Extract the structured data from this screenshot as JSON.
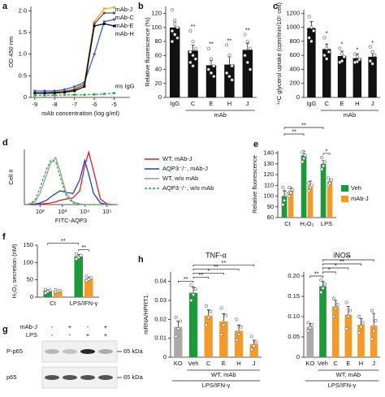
{
  "chart_data": [
    {
      "panel": "a",
      "type": "line",
      "xlabel": "mAb concentration (log g/ml)",
      "ylabel": "OD 450 nm",
      "x": [
        -9,
        -8.5,
        -8,
        -7.5,
        -7,
        -6.5,
        -6,
        -5.5,
        -5
      ],
      "xlim": [
        -9.2,
        -4.2
      ],
      "xticks": [
        -9,
        -8,
        -7,
        -6,
        -5
      ],
      "ylim": [
        0,
        2.1
      ],
      "yticks": [
        0,
        0.5,
        {
          "value": 1,
          "label": "1.0"
        },
        1.5,
        {
          "value": 2,
          "label": "2.0"
        }
      ],
      "markers": true,
      "legend": "line-end",
      "series": [
        {
          "name": "mAb-J",
          "color": "#f5a623",
          "values": [
            0.12,
            0.12,
            0.13,
            0.15,
            0.2,
            0.35,
            1.75,
            2.05,
            2.08
          ]
        },
        {
          "name": "mAb-C",
          "color": "#555555",
          "values": [
            0.1,
            0.1,
            0.12,
            0.13,
            0.18,
            0.3,
            1.7,
            1.95,
            1.95
          ]
        },
        {
          "name": "mAb-E",
          "color": "#3a5fcd",
          "values": [
            0.15,
            0.15,
            0.15,
            0.18,
            0.25,
            0.35,
            1.0,
            1.75,
            1.8
          ]
        },
        {
          "name": "mAb-H",
          "color": "#000000",
          "values": [
            0.1,
            0.1,
            0.1,
            0.12,
            0.15,
            0.25,
            1.65,
            1.7,
            1.65
          ]
        },
        {
          "name": "ms IgG",
          "color": "#2eaa4a",
          "dash": true,
          "values": [
            0.05,
            0.05,
            0.05,
            0.06,
            0.06,
            0.06,
            0.07,
            0.08,
            0.1
          ]
        }
      ]
    },
    {
      "panel": "b",
      "type": "bar",
      "ylabel": "Relative fluorescence (%)",
      "color": "#111111",
      "categories": [
        "IgG",
        "C",
        "E",
        "H",
        "J"
      ],
      "values": [
        100,
        67,
        46,
        47,
        68
      ],
      "errors": [
        9,
        8,
        7,
        11,
        9
      ],
      "points": [
        [
          125,
          110,
          100,
          95,
          90,
          85,
          80,
          105
        ],
        [
          95,
          80,
          70,
          65,
          60,
          55,
          50,
          45
        ],
        [
          70,
          55,
          45,
          40,
          35,
          30
        ],
        [
          75,
          60,
          45,
          35,
          30,
          25
        ],
        [
          90,
          80,
          70,
          60,
          50,
          40
        ]
      ],
      "sig": [
        null,
        "**",
        "**",
        "**",
        "**"
      ],
      "group_labels": [
        "mAb"
      ],
      "ylim": [
        0,
        130
      ],
      "yticks": [
        0,
        20,
        40,
        60,
        80,
        100,
        120
      ]
    },
    {
      "panel": "c",
      "type": "bar",
      "ylabel": "¹⁴C glycerol uptake (cpm/min/10⁵ cell)",
      "color": "#111111",
      "categories": [
        "IgG",
        "C",
        "E",
        "H",
        "J"
      ],
      "values": [
        990,
        690,
        590,
        560,
        580
      ],
      "errors": [
        90,
        70,
        70,
        60,
        60
      ],
      "points": [
        [
          1150,
          1000,
          950,
          850,
          800
        ],
        [
          850,
          700,
          650,
          600,
          550
        ],
        [
          700,
          620,
          580,
          500,
          520
        ],
        [
          620,
          580,
          540,
          500,
          510
        ],
        [
          720,
          650,
          600,
          520,
          480
        ]
      ],
      "sig": [
        null,
        "*",
        "*",
        "*",
        "*"
      ],
      "group_labels": [
        "mAb"
      ],
      "ylim": [
        0,
        1250
      ],
      "yticks": [
        0,
        200,
        400,
        600,
        800,
        1000,
        1200
      ]
    },
    {
      "panel": "d",
      "type": "line",
      "xlabel": "FITC-AQP3",
      "ylabel": "Cell #",
      "xscale": "log",
      "legend": "right",
      "x": [
        30,
        60,
        100,
        200,
        300,
        500,
        800,
        1500,
        3000,
        6000,
        10000,
        15000,
        25000,
        50000,
        100000,
        200000
      ],
      "xlim": [
        20,
        300000
      ],
      "xticks": [
        {
          "value": 100,
          "label": "10²"
        },
        {
          "value": 1000,
          "label": "10³"
        },
        {
          "value": 10000,
          "label": "10⁴"
        },
        {
          "value": 100000,
          "label": "10⁵"
        }
      ],
      "ylim": [
        0,
        100
      ],
      "series": [
        {
          "name": "WT, mAb-J",
          "color": "#e02020",
          "values": [
            0,
            0,
            1,
            2,
            3,
            5,
            8,
            10,
            12,
            25,
            70,
            95,
            60,
            10,
            1,
            0
          ]
        },
        {
          "name": "AQP3⁻/⁻, mAb-J",
          "color": "#2040c0",
          "values": [
            0,
            1,
            3,
            8,
            14,
            20,
            25,
            22,
            20,
            45,
            80,
            55,
            20,
            3,
            0,
            0
          ]
        },
        {
          "name": "WT, w/o mAb",
          "color": "#999999",
          "values": [
            0,
            5,
            20,
            55,
            75,
            85,
            60,
            20,
            5,
            1,
            0,
            0,
            0,
            0,
            0,
            0
          ]
        },
        {
          "name": "AQP3⁻/⁻, w/o mAb",
          "color": "#2eaa4a",
          "dash": true,
          "values": [
            0,
            8,
            30,
            65,
            80,
            78,
            50,
            15,
            3,
            1,
            0,
            0,
            0,
            0,
            0,
            0
          ]
        }
      ]
    },
    {
      "panel": "e",
      "type": "bar",
      "ylabel": "Relative fluorescence",
      "legend": "right",
      "categories": [
        "Ct",
        "H₂O₂",
        "LPS"
      ],
      "ylim": [
        80,
        142
      ],
      "yticks": [
        80,
        90,
        100,
        110,
        120,
        130,
        140
      ],
      "series": [
        {
          "name": "Veh",
          "color": "#1a9a3a",
          "values": [
            100,
            138,
            130
          ],
          "errors": [
            5,
            4,
            3
          ],
          "points": [
            [
              92,
              96,
              103,
              108
            ],
            [
              132,
              135,
              138,
              141
            ],
            [
              125,
              128,
              132,
              136
            ]
          ]
        },
        {
          "name": "mAb-J",
          "color": "#f39a2b",
          "values": [
            105,
            110,
            114
          ],
          "errors": [
            3,
            4,
            2
          ],
          "points": [
            [
              100,
              103,
              106,
              108
            ],
            [
              105,
              108,
              110,
              112
            ],
            [
              110,
              112,
              115,
              117
            ]
          ]
        }
      ],
      "brackets": [
        "**",
        "**",
        "*"
      ]
    },
    {
      "panel": "f",
      "type": "bar",
      "ylabel": "H₂O₂ secretion (nM)",
      "categories": [
        "Ct",
        "LPS/IFN-γ"
      ],
      "ylim": [
        0,
        150
      ],
      "yticks": [
        0,
        50,
        100,
        150
      ],
      "series": [
        {
          "name": "Veh",
          "color": "#1a9a3a",
          "values": [
            18,
            118
          ],
          "errors": [
            3,
            5
          ],
          "points": [
            [
              12,
              16,
              20,
              22
            ],
            [
              110,
              115,
              120,
              125
            ]
          ]
        },
        {
          "name": "mAb-J",
          "color": "#f39a2b",
          "values": [
            18,
            53
          ],
          "errors": [
            2,
            4
          ],
          "points": [
            [
              15,
              17,
              19,
              21
            ],
            [
              48,
              52,
              56,
              60
            ]
          ]
        }
      ],
      "brackets": [
        "**",
        "**"
      ]
    },
    {
      "panel": "h",
      "type": "bar",
      "title": "TNF-α",
      "ylabel": "mRNA/HPRT1",
      "categories": [
        "KO",
        "Veh",
        "C",
        "E",
        "H",
        "J"
      ],
      "values": [
        0.016,
        0.034,
        0.022,
        0.019,
        0.014,
        0.007
      ],
      "errors": [
        0.003,
        0.003,
        0.003,
        0.004,
        0.003,
        0.002
      ],
      "points": [
        [
          0.011,
          0.015,
          0.019,
          0.021
        ],
        [
          0.03,
          0.033,
          0.036,
          0.038
        ],
        [
          0.017,
          0.021,
          0.024,
          0.027
        ],
        [
          0.012,
          0.017,
          0.022,
          0.026
        ],
        [
          0.009,
          0.012,
          0.016,
          0.02
        ],
        [
          0.004,
          0.006,
          0.008,
          0.011
        ]
      ],
      "colors": [
        "#aaaaaa",
        "#1a9a3a",
        "#f39a2b",
        "#f39a2b",
        "#f39a2b",
        "#f39a2b"
      ],
      "ylim": [
        0,
        0.045
      ],
      "yticks": [
        0,
        0.01,
        0.02,
        0.03,
        0.04
      ],
      "brackets": [
        "**",
        "**",
        "*",
        "**",
        "**"
      ],
      "group_labels": [
        "WT, mAb",
        "LPS/IFN-γ"
      ]
    },
    {
      "type": "bar",
      "title": "iNOS",
      "categories": [
        "KO",
        "Veh",
        "C",
        "E",
        "H",
        "J"
      ],
      "values": [
        0.075,
        0.175,
        0.125,
        0.105,
        0.08,
        0.078
      ],
      "errors": [
        0.008,
        0.012,
        0.015,
        0.02,
        0.015,
        0.03
      ],
      "points": [
        [
          0.065,
          0.072,
          0.08,
          0.085
        ],
        [
          0.16,
          0.17,
          0.18,
          0.19
        ],
        [
          0.1,
          0.12,
          0.13,
          0.145
        ],
        [
          0.07,
          0.1,
          0.115,
          0.135
        ],
        [
          0.06,
          0.075,
          0.085,
          0.1
        ],
        [
          0.045,
          0.065,
          0.09,
          0.115
        ]
      ],
      "colors": [
        "#aaaaaa",
        "#1a9a3a",
        "#f39a2b",
        "#f39a2b",
        "#f39a2b",
        "#f39a2b"
      ],
      "ylim": [
        0,
        0.21
      ],
      "yticks": [
        0,
        0.05,
        {
          "value": 0.1,
          "label": "0.10"
        },
        0.15,
        {
          "value": 0.2,
          "label": "0.20"
        }
      ],
      "brackets": [
        "**",
        "*",
        "*",
        "**",
        "**"
      ],
      "group_labels": [
        "WT, mAb",
        "LPS/IFN-γ"
      ]
    }
  ],
  "blot": {
    "panel": "g",
    "rows": [
      {
        "label": "mAb-J",
        "signs": [
          "-",
          "+",
          "-",
          "+"
        ]
      },
      {
        "label": "LPS",
        "signs": [
          "-",
          "-",
          "+",
          "+"
        ]
      }
    ],
    "bands": [
      {
        "label": "P-p65",
        "size": "65 kDa"
      },
      {
        "label": "p65",
        "size": "65 kDa"
      }
    ]
  }
}
